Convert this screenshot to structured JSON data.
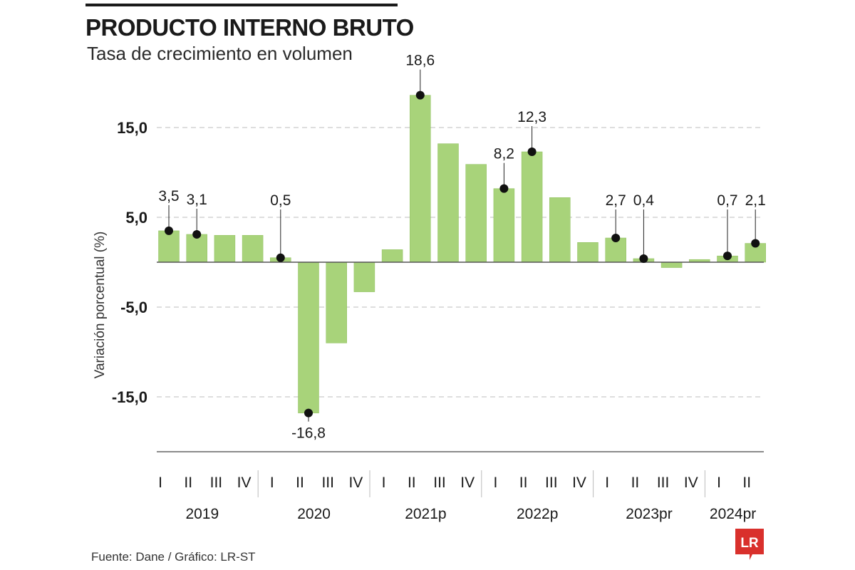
{
  "header": {
    "title": "PRODUCTO INTERNO BRUTO",
    "subtitle": "Tasa de crecimiento en volumen"
  },
  "footer": {
    "source": "Fuente: Dane / Gráfico: LR-ST",
    "logo_text": "LR"
  },
  "colors": {
    "bar": "#a8d37a",
    "bar_stroke": "#8fbf5e",
    "marker": "#111111",
    "grid": "#bdbdbd",
    "logo_bg": "#d9302c"
  },
  "chart_data": {
    "type": "bar",
    "title": "PRODUCTO INTERNO BRUTO",
    "subtitle": "Tasa de crecimiento en volumen",
    "xlabel": "",
    "ylabel": "Variación porcentual (%)",
    "ylim": [
      -21,
      19
    ],
    "yticks": [
      15,
      5,
      -5,
      -15
    ],
    "ytick_labels": [
      "15,0",
      "5,0",
      "-5,0",
      "-15,0"
    ],
    "grid": true,
    "categories": [
      "I",
      "II",
      "III",
      "IV",
      "I",
      "II",
      "III",
      "IV",
      "I",
      "II",
      "III",
      "IV",
      "I",
      "II",
      "III",
      "IV",
      "I",
      "II",
      "III",
      "IV",
      "I",
      "II"
    ],
    "years": [
      {
        "label": "2019",
        "count": 4
      },
      {
        "label": "2020",
        "count": 4
      },
      {
        "label": "2021p",
        "count": 4
      },
      {
        "label": "2022p",
        "count": 4
      },
      {
        "label": "2023pr",
        "count": 4
      },
      {
        "label": "2024pr",
        "count": 2
      }
    ],
    "values": [
      3.5,
      3.1,
      3.0,
      3.0,
      0.5,
      -16.8,
      -9.0,
      -3.3,
      1.4,
      18.6,
      13.2,
      10.9,
      8.2,
      12.3,
      7.2,
      2.2,
      2.7,
      0.4,
      -0.6,
      0.3,
      0.7,
      2.1
    ],
    "data_labels": [
      {
        "index": 0,
        "text": "3,5"
      },
      {
        "index": 1,
        "text": "3,1"
      },
      {
        "index": 4,
        "text": "0,5"
      },
      {
        "index": 5,
        "text": "-16,8"
      },
      {
        "index": 9,
        "text": "18,6"
      },
      {
        "index": 12,
        "text": "8,2"
      },
      {
        "index": 13,
        "text": "12,3"
      },
      {
        "index": 16,
        "text": "2,7"
      },
      {
        "index": 17,
        "text": "0,4"
      },
      {
        "index": 20,
        "text": "0,7"
      },
      {
        "index": 21,
        "text": "2,1"
      }
    ]
  }
}
